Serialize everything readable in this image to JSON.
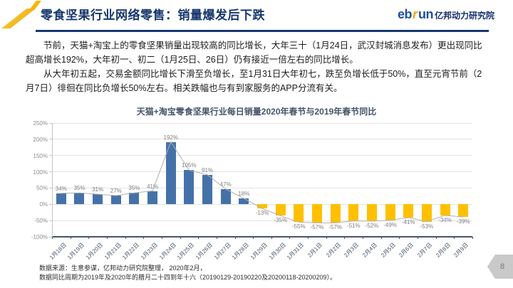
{
  "header": {
    "title": "零食坚果行业网络零售：销量爆发后下跌",
    "logo": {
      "eb": "eb",
      "r": "r",
      "un": "un",
      "suffix": "亿邦动力研究院"
    }
  },
  "body": {
    "paragraph1": "节前，天猫+淘宝上的零食坚果销量出现较高的同比增长，大年三十（1月24日，武汉封城消息发布）更出现同比超高增长192%，大年初一、初二（1月25日、26日）仍有接近一倍左右的同比增长。",
    "paragraph2": "从大年初五起，交易金额同比增长下滑至负增长，至1月31日大年初七，跌至负增长低于50%，直至元宵节前（2月7日）徘徊在同比负增长50%左右。相关跌幅也与有到家服务的APP分流有关。"
  },
  "chart_data": {
    "type": "bar",
    "title": "天猫+淘宝零食坚果行业每日销量2020年春节与2019年春节同比",
    "categories": [
      "1月18日",
      "1月19日",
      "1月20日",
      "1月21日",
      "1月22日",
      "1月23日",
      "1月24日",
      "1月25日",
      "1月26日",
      "1月27日",
      "1月28日",
      "1月29日",
      "1月30日",
      "1月31日",
      "2月1日",
      "2月2日",
      "2月3日",
      "2月4日",
      "2月5日",
      "2月6日",
      "2月7日",
      "2月8日",
      "2月9日"
    ],
    "values": [
      34,
      35,
      31,
      27,
      35,
      41,
      192,
      105,
      91,
      47,
      18,
      -13,
      -35,
      -55,
      -57,
      -57,
      -51,
      -52,
      -49,
      -41,
      -53,
      -34,
      -39
    ],
    "unit": "%",
    "ylabel": "",
    "xlabel": "",
    "ylim": [
      -100,
      250
    ],
    "ytick_step": 50,
    "grid": true,
    "legend": "none",
    "overlay": "line-through-values",
    "colors": {
      "positive_bar": "#4472a8",
      "negative_bar": "#ffc000",
      "line": "#b0b0b0",
      "data_label": "#7f7f7f",
      "axis": "#44546a"
    }
  },
  "footer": {
    "source_line1": "数据来源：生意参谋，亿邦动力研究院整理， 2020年2月，",
    "source_line2": "数据同比周期为2019年及2020年的腊月二十四到年十六（20190129-20190220及20200118-20200209）。",
    "page_number": "8"
  },
  "colors": {
    "accent_navy": "#17376e",
    "brand_blue": "#1d4e9e",
    "brand_yellow": "#f2b307",
    "badge_gray": "#c9c9c9"
  }
}
